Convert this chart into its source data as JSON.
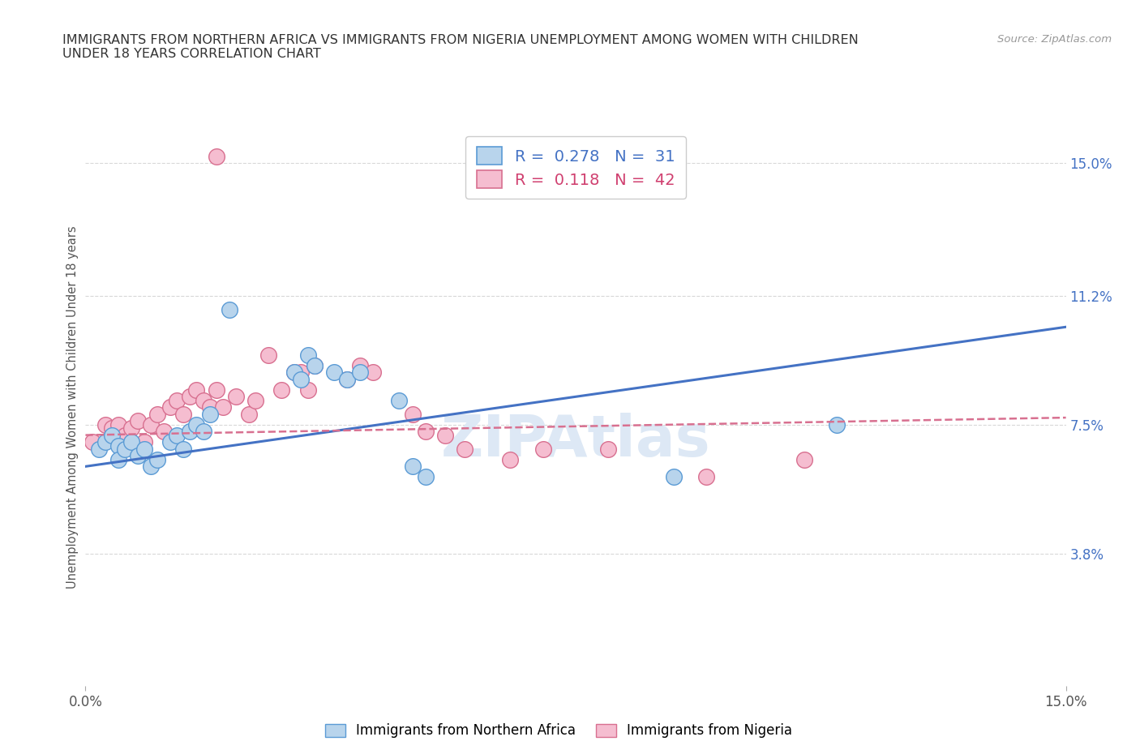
{
  "title": "IMMIGRANTS FROM NORTHERN AFRICA VS IMMIGRANTS FROM NIGERIA UNEMPLOYMENT AMONG WOMEN WITH CHILDREN\nUNDER 18 YEARS CORRELATION CHART",
  "source": "Source: ZipAtlas.com",
  "ylabel": "Unemployment Among Women with Children Under 18 years",
  "xlim": [
    0.0,
    0.15
  ],
  "ylim": [
    0.0,
    0.16
  ],
  "xtick_values": [
    0.0,
    0.15
  ],
  "xtick_labels": [
    "0.0%",
    "15.0%"
  ],
  "ytick_right_labels": [
    "15.0%",
    "11.2%",
    "7.5%",
    "3.8%"
  ],
  "ytick_right_values": [
    0.15,
    0.112,
    0.075,
    0.038
  ],
  "legend_items": [
    {
      "label": "R =  0.278   N =  31",
      "color": "#b8d4ec",
      "edge_color": "#5b9bd5",
      "text_color": "#4472c4"
    },
    {
      "label": "R =  0.118   N =  42",
      "color": "#f5bdd0",
      "edge_color": "#d87090",
      "text_color": "#d04070"
    }
  ],
  "legend_bottom_labels": [
    "Immigrants from Northern Africa",
    "Immigrants from Nigeria"
  ],
  "legend_bottom_colors": [
    "#b8d4ec",
    "#f5bdd0"
  ],
  "legend_bottom_edge_colors": [
    "#5b9bd5",
    "#d87090"
  ],
  "watermark": "ZIPAtlas",
  "blue_scatter": [
    [
      0.002,
      0.068
    ],
    [
      0.003,
      0.07
    ],
    [
      0.004,
      0.072
    ],
    [
      0.005,
      0.069
    ],
    [
      0.005,
      0.065
    ],
    [
      0.006,
      0.068
    ],
    [
      0.007,
      0.07
    ],
    [
      0.008,
      0.066
    ],
    [
      0.009,
      0.068
    ],
    [
      0.01,
      0.063
    ],
    [
      0.011,
      0.065
    ],
    [
      0.013,
      0.07
    ],
    [
      0.014,
      0.072
    ],
    [
      0.015,
      0.068
    ],
    [
      0.016,
      0.073
    ],
    [
      0.017,
      0.075
    ],
    [
      0.018,
      0.073
    ],
    [
      0.019,
      0.078
    ],
    [
      0.022,
      0.108
    ],
    [
      0.032,
      0.09
    ],
    [
      0.033,
      0.088
    ],
    [
      0.034,
      0.095
    ],
    [
      0.035,
      0.092
    ],
    [
      0.038,
      0.09
    ],
    [
      0.04,
      0.088
    ],
    [
      0.042,
      0.09
    ],
    [
      0.048,
      0.082
    ],
    [
      0.05,
      0.063
    ],
    [
      0.052,
      0.06
    ],
    [
      0.09,
      0.06
    ],
    [
      0.115,
      0.075
    ]
  ],
  "pink_scatter": [
    [
      0.001,
      0.07
    ],
    [
      0.003,
      0.075
    ],
    [
      0.004,
      0.074
    ],
    [
      0.005,
      0.075
    ],
    [
      0.006,
      0.072
    ],
    [
      0.007,
      0.074
    ],
    [
      0.008,
      0.076
    ],
    [
      0.009,
      0.07
    ],
    [
      0.01,
      0.075
    ],
    [
      0.011,
      0.078
    ],
    [
      0.012,
      0.073
    ],
    [
      0.013,
      0.08
    ],
    [
      0.014,
      0.082
    ],
    [
      0.015,
      0.078
    ],
    [
      0.016,
      0.083
    ],
    [
      0.017,
      0.085
    ],
    [
      0.018,
      0.082
    ],
    [
      0.019,
      0.08
    ],
    [
      0.02,
      0.085
    ],
    [
      0.021,
      0.08
    ],
    [
      0.023,
      0.083
    ],
    [
      0.025,
      0.078
    ],
    [
      0.026,
      0.082
    ],
    [
      0.028,
      0.095
    ],
    [
      0.03,
      0.085
    ],
    [
      0.032,
      0.09
    ],
    [
      0.033,
      0.09
    ],
    [
      0.034,
      0.085
    ],
    [
      0.035,
      0.092
    ],
    [
      0.04,
      0.088
    ],
    [
      0.042,
      0.092
    ],
    [
      0.044,
      0.09
    ],
    [
      0.05,
      0.078
    ],
    [
      0.052,
      0.073
    ],
    [
      0.055,
      0.072
    ],
    [
      0.058,
      0.068
    ],
    [
      0.065,
      0.065
    ],
    [
      0.07,
      0.068
    ],
    [
      0.02,
      0.152
    ],
    [
      0.08,
      0.068
    ],
    [
      0.095,
      0.06
    ],
    [
      0.11,
      0.065
    ]
  ],
  "blue_line_x": [
    0.0,
    0.15
  ],
  "blue_line_y": [
    0.063,
    0.103
  ],
  "pink_line_x": [
    0.0,
    0.15
  ],
  "pink_line_y": [
    0.072,
    0.077
  ],
  "blue_color": "#b8d4ec",
  "pink_color": "#f5bdd0",
  "blue_edge_color": "#5b9bd5",
  "pink_edge_color": "#d87090",
  "blue_line_color": "#4472c4",
  "pink_line_color": "#d87090",
  "grid_color": "#d8d8d8",
  "bg_color": "#ffffff"
}
